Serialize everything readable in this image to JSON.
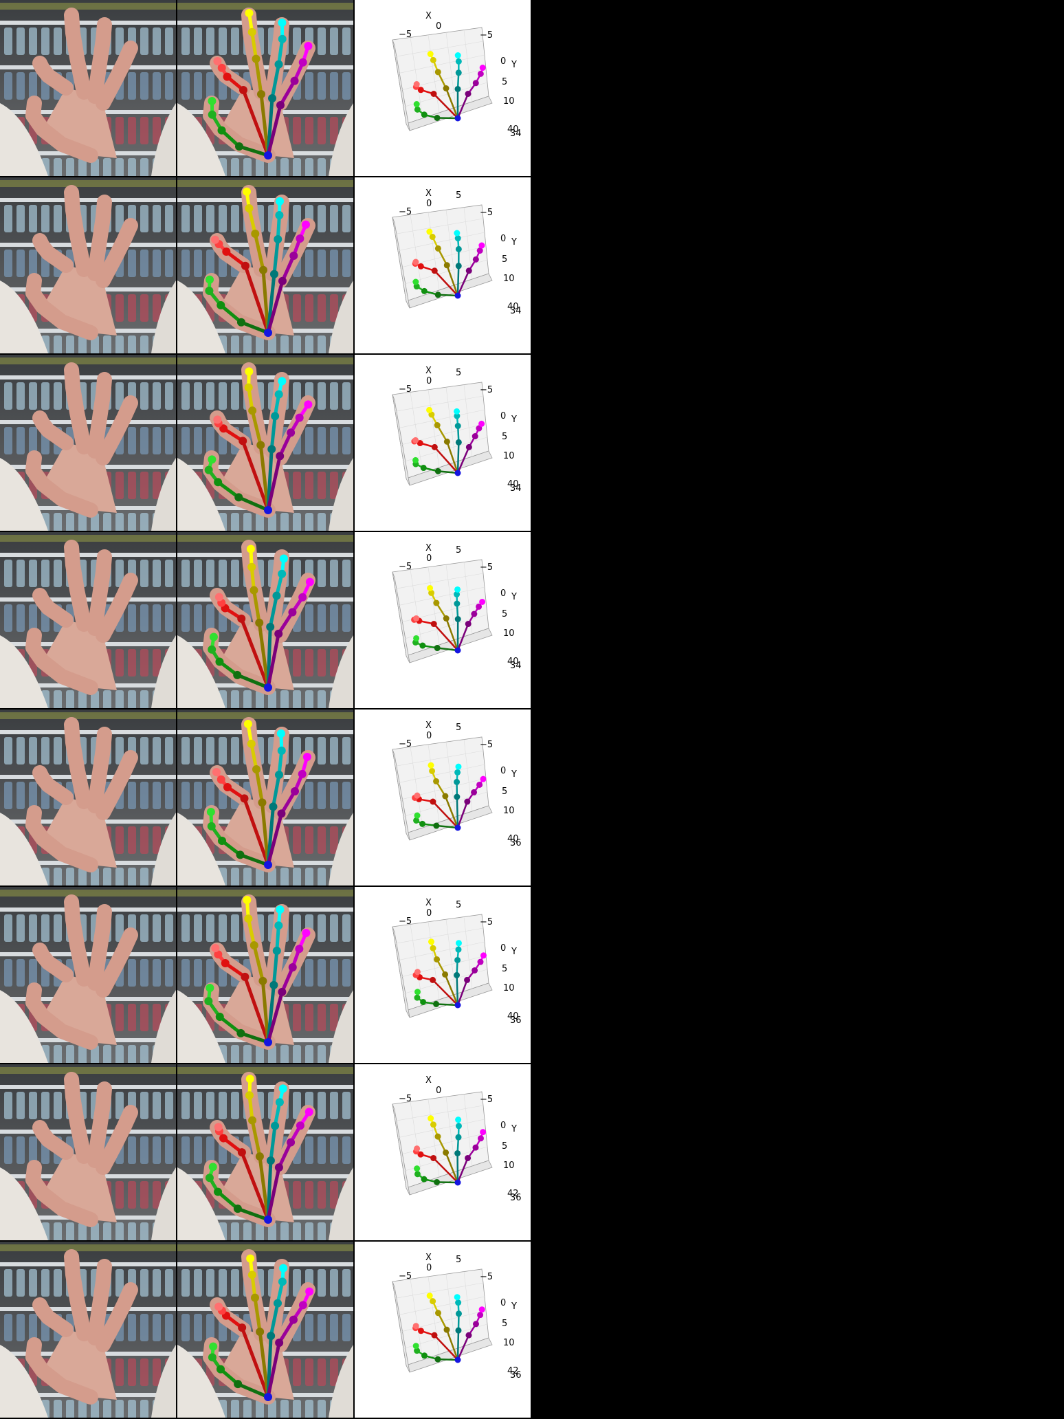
{
  "colors": {
    "background": "#000000",
    "plot_background": "#ffffff",
    "wrist": "#1515e0",
    "thumb": [
      "#107010",
      "#109010",
      "#20b020",
      "#30e030"
    ],
    "thumb_tip_alt": "#ff6a6a",
    "index": [
      "#c01010",
      "#e01010",
      "#ff4040",
      "#ff7070"
    ],
    "middle": [
      "#8a7a00",
      "#a89800",
      "#d8cc00",
      "#ffff00"
    ],
    "ring": [
      "#007878",
      "#009898",
      "#00b8b8",
      "#00ffff"
    ],
    "pinky": [
      "#7a007a",
      "#9a009a",
      "#c000c0",
      "#ff00ff"
    ]
  },
  "rows": [
    {
      "plot": {
        "x_label": "X",
        "y_label": "Y",
        "x_ticks": [
          "−5",
          "0",
          "−5"
        ],
        "y_ticks": [
          "0",
          "5",
          "10"
        ],
        "z_ticks": [
          "40",
          "34"
        ]
      }
    },
    {
      "plot": {
        "x_label": "X",
        "y_label": "Y",
        "x_ticks": [
          "−5",
          "0",
          "5",
          "−5"
        ],
        "y_ticks": [
          "0",
          "5",
          "10"
        ],
        "z_ticks": [
          "40",
          "34"
        ]
      }
    },
    {
      "plot": {
        "x_label": "X",
        "y_label": "Y",
        "x_ticks": [
          "−5",
          "0",
          "5",
          "−5"
        ],
        "y_ticks": [
          "0",
          "5",
          "10"
        ],
        "z_ticks": [
          "40",
          "34"
        ]
      }
    },
    {
      "plot": {
        "x_label": "X",
        "y_label": "Y",
        "x_ticks": [
          "−5",
          "0",
          "5",
          "−5"
        ],
        "y_ticks": [
          "0",
          "5",
          "10"
        ],
        "z_ticks": [
          "40",
          "34"
        ]
      }
    },
    {
      "plot": {
        "x_label": "X",
        "y_label": "Y",
        "x_ticks": [
          "−5",
          "0",
          "5",
          "−5"
        ],
        "y_ticks": [
          "0",
          "5",
          "10"
        ],
        "z_ticks": [
          "40",
          "36"
        ]
      }
    },
    {
      "plot": {
        "x_label": "X",
        "y_label": "Y",
        "x_ticks": [
          "−5",
          "0",
          "5",
          "−5"
        ],
        "y_ticks": [
          "0",
          "5",
          "10"
        ],
        "z_ticks": [
          "40",
          "36"
        ]
      }
    },
    {
      "plot": {
        "x_label": "X",
        "y_label": "Y",
        "x_ticks": [
          "−5",
          "0",
          "−5"
        ],
        "y_ticks": [
          "0",
          "5",
          "10"
        ],
        "z_ticks": [
          "42",
          "36"
        ]
      }
    },
    {
      "plot": {
        "x_label": "X",
        "y_label": "Y",
        "x_ticks": [
          "−5",
          "0",
          "5",
          "−5"
        ],
        "y_ticks": [
          "0",
          "5",
          "10"
        ],
        "z_ticks": [
          "42",
          "36"
        ]
      }
    }
  ]
}
